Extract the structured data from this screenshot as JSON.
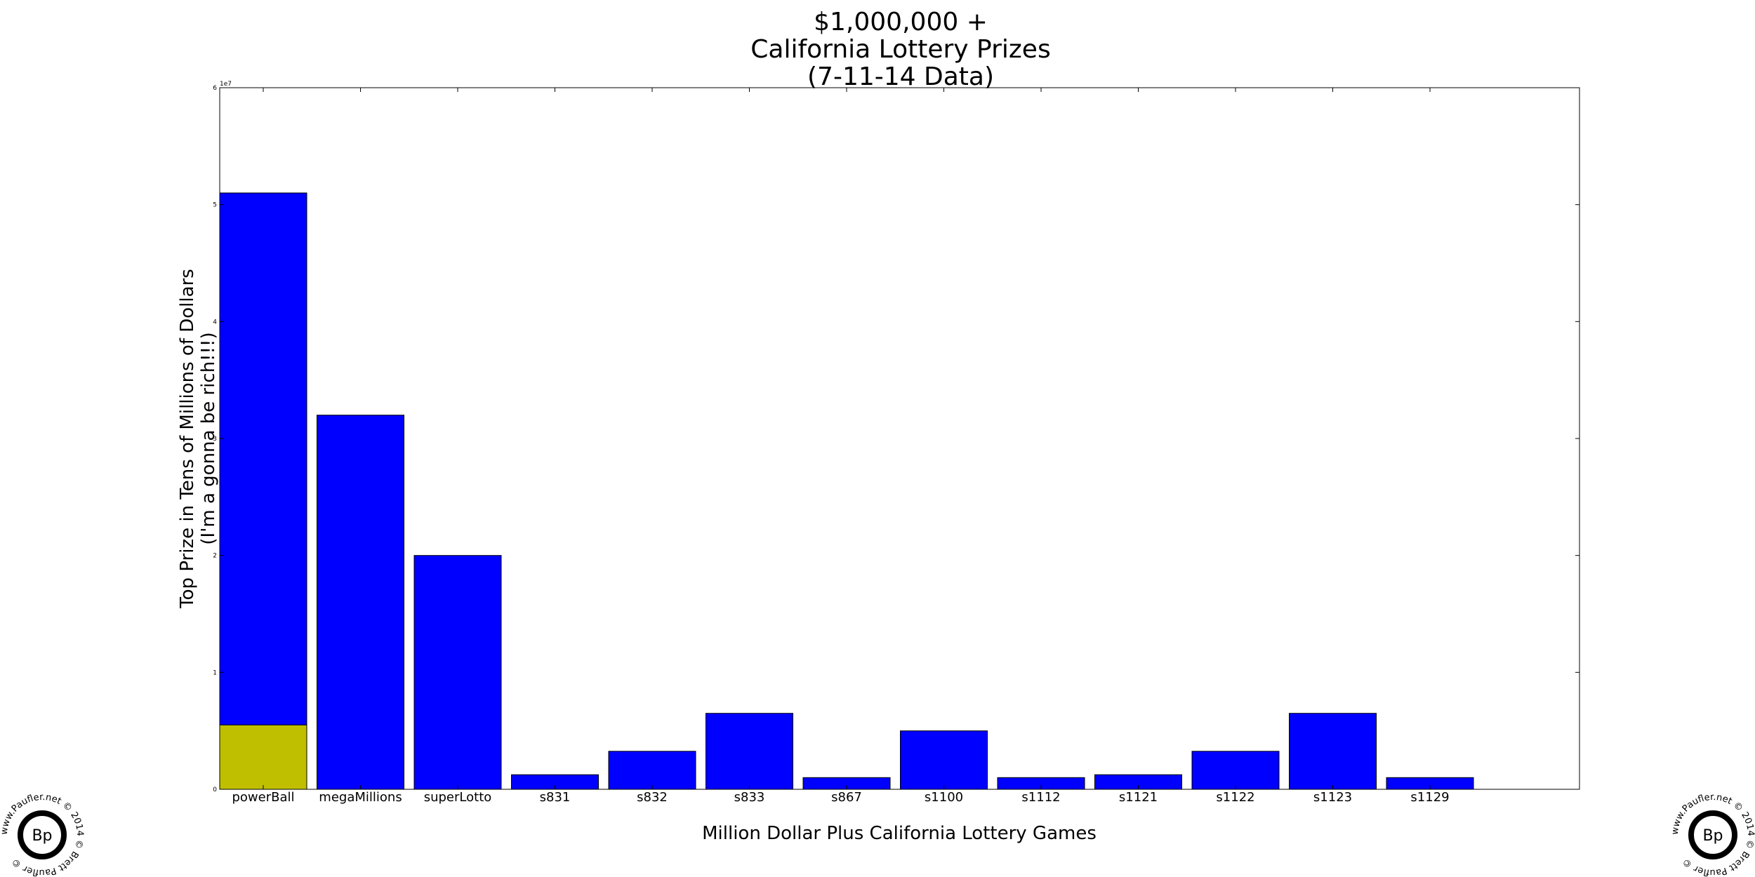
{
  "chart_data": {
    "type": "bar",
    "title_lines": [
      "$1,000,000 +",
      "California Lottery Prizes",
      "(7-11-14 Data)"
    ],
    "xlabel": "Million Dollar Plus California Lottery Games",
    "ylabel_lines": [
      "Top Prize in Tens of Millions of Dollars",
      "(I'm a gonna be rich!!!)"
    ],
    "ylim": [
      0,
      60000000
    ],
    "y_ticks": [
      {
        "value": 0,
        "label": "0"
      },
      {
        "value": 10000000,
        "label": "1"
      },
      {
        "value": 20000000,
        "label": "2"
      },
      {
        "value": 30000000,
        "label": "3"
      },
      {
        "value": 40000000,
        "label": "4"
      },
      {
        "value": 50000000,
        "label": "5"
      },
      {
        "value": 60000000,
        "label": "6"
      }
    ],
    "y_offset_label": "1e7",
    "grid": false,
    "categories": [
      "powerBall",
      "megaMillions",
      "superLotto",
      "s831",
      "s832",
      "s833",
      "s867",
      "s1100",
      "s1112",
      "s1121",
      "s1122",
      "s1123",
      "s1129"
    ],
    "series": [
      {
        "color": "#0000ff",
        "values": [
          51000000,
          32000000,
          20000000,
          1250000,
          3250000,
          6500000,
          1000000,
          5000000,
          1000000,
          1250000,
          3250000,
          6500000,
          1000000
        ]
      },
      {
        "color": "#bfbf00",
        "values": [
          5500000,
          null,
          null,
          null,
          null,
          null,
          null,
          null,
          null,
          null,
          null,
          null,
          null
        ]
      }
    ],
    "bar_edge_color": "#000000"
  },
  "watermark": {
    "ring_text": "www.Paufler.net © 2014 © Brett Paufler ©",
    "monogram": "Bp"
  }
}
